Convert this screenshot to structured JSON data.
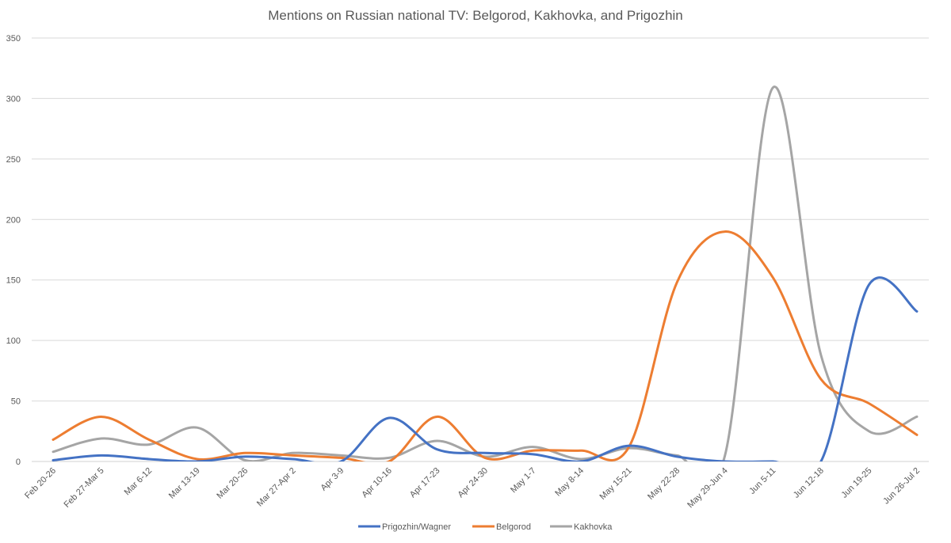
{
  "chart_data": {
    "type": "line",
    "title": "Mentions on Russian national TV: Belgorod, Kakhovka, and Prigozhin",
    "xlabel": "",
    "ylabel": "",
    "ylim": [
      0,
      350
    ],
    "yticks": [
      0,
      50,
      100,
      150,
      200,
      250,
      300,
      350
    ],
    "grid": true,
    "legend_position": "bottom-center",
    "categories": [
      "Feb 20-26",
      "Feb 27-Mar 5",
      "Mar 6-12",
      "Mar 13-19",
      "Mar 20-26",
      "Mar 27-Apr 2",
      "Apr 3-9",
      "Apr 10-16",
      "Apr 17-23",
      "Apr 24-30",
      "May 1-7",
      "May 8-14",
      "May 15-21",
      "May 22-28",
      "May 29-Jun 4",
      "Jun 5-11",
      "Jun 12-18",
      "Jun 19-25",
      "Jun 26-Jul 2"
    ],
    "series": [
      {
        "name": "Prigozhin/Wagner",
        "color": "#4472c4",
        "values": [
          1,
          5,
          2,
          0,
          4,
          2,
          0,
          36,
          10,
          7,
          6,
          0,
          13,
          4,
          0,
          0,
          0,
          146,
          124
        ]
      },
      {
        "name": "Belgorod",
        "color": "#ed7d31",
        "values": [
          18,
          37,
          18,
          2,
          7,
          5,
          3,
          0,
          37,
          3,
          9,
          9,
          12,
          148,
          190,
          152,
          68,
          48,
          22
        ]
      },
      {
        "name": "Kakhovka",
        "color": "#a5a5a5",
        "values": [
          8,
          19,
          14,
          28,
          1,
          7,
          5,
          3,
          17,
          4,
          12,
          2,
          11,
          5,
          5,
          309,
          88,
          25,
          37
        ]
      }
    ]
  }
}
